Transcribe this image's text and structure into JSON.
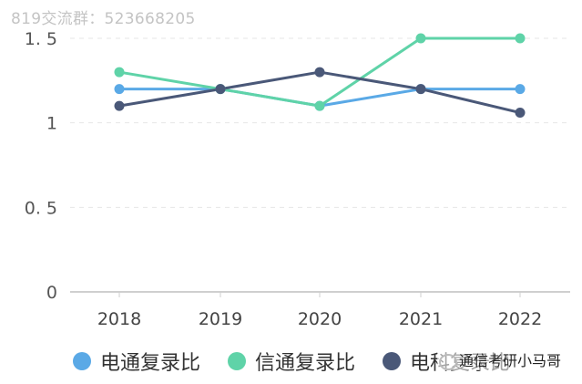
{
  "watermark_top": "819交流群：523668205",
  "watermark_bottom": "通信考研小马哥",
  "chart_data": {
    "type": "line",
    "title": "",
    "xlabel": "",
    "ylabel": "",
    "categories": [
      "2018",
      "2019",
      "2020",
      "2021",
      "2022"
    ],
    "ylim": [
      0,
      1.5
    ],
    "yticks": [
      "0",
      "0.5",
      "1",
      "1.5"
    ],
    "grid": true,
    "legend_position": "bottom",
    "series": [
      {
        "name": "电通复录比",
        "color": "#5aa9e6",
        "values": [
          1.2,
          1.2,
          1.1,
          1.2,
          1.2
        ]
      },
      {
        "name": "信通复录比",
        "color": "#5fd3a8",
        "values": [
          1.3,
          1.2,
          1.1,
          1.5,
          1.5
        ]
      },
      {
        "name": "电科复录比",
        "color": "#4a5878",
        "values": [
          1.1,
          1.2,
          1.3,
          1.2,
          1.06
        ]
      }
    ]
  }
}
